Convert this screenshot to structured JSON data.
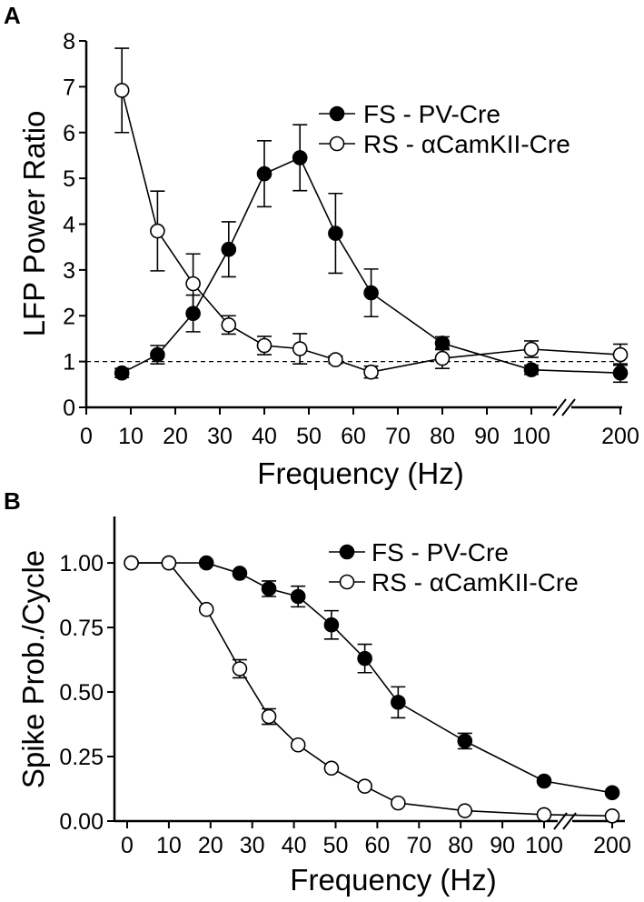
{
  "figure": {
    "panels": [
      {
        "letter": "A"
      },
      {
        "letter": "B"
      }
    ]
  },
  "chart_data": [
    {
      "type": "line",
      "panel": "A",
      "xlabel": "Frequency (Hz)",
      "ylabel": "LFP Power Ratio",
      "ylim": [
        0,
        8
      ],
      "x_tick_labels": [
        "0",
        "10",
        "20",
        "30",
        "40",
        "50",
        "60",
        "70",
        "80",
        "90",
        "100",
        "200"
      ],
      "y_tick_labels": [
        "0",
        "1",
        "2",
        "3",
        "4",
        "5",
        "6",
        "7",
        "8"
      ],
      "axis_break": "between 100 and 200 Hz",
      "reference_line": {
        "y": 1,
        "style": "dashed"
      },
      "legend_position": "top-right",
      "series": [
        {
          "name": "FS - PV-Cre",
          "marker": "filled-circle",
          "x": [
            8,
            16,
            24,
            32,
            40,
            48,
            56,
            64,
            80,
            100,
            200
          ],
          "values": [
            0.75,
            1.15,
            2.05,
            3.45,
            5.1,
            5.45,
            3.8,
            2.5,
            1.4,
            0.82,
            0.75
          ],
          "error": [
            0.1,
            0.2,
            0.4,
            0.6,
            0.72,
            0.72,
            0.87,
            0.52,
            0.14,
            0.1,
            0.2
          ]
        },
        {
          "name": "RS - αCamKII-Cre",
          "marker": "open-circle",
          "x": [
            8,
            16,
            24,
            32,
            40,
            48,
            56,
            64,
            80,
            100,
            200
          ],
          "values": [
            6.92,
            3.85,
            2.7,
            1.8,
            1.35,
            1.28,
            1.04,
            0.77,
            1.07,
            1.27,
            1.15
          ],
          "error": [
            0.92,
            0.87,
            0.65,
            0.2,
            0.2,
            0.33,
            0.08,
            0.13,
            0.22,
            0.18,
            0.23
          ]
        }
      ]
    },
    {
      "type": "line",
      "panel": "B",
      "xlabel": "Frequency (Hz)",
      "ylabel": "Spike Prob./Cycle",
      "ylim": [
        0,
        1.18
      ],
      "x_tick_labels": [
        "0",
        "10",
        "20",
        "30",
        "40",
        "50",
        "60",
        "70",
        "80",
        "90",
        "100",
        "200"
      ],
      "y_tick_labels": [
        "0.00",
        "0.25",
        "0.50",
        "0.75",
        "1.00"
      ],
      "axis_break": "between 100 and 200 Hz",
      "legend_position": "top-right",
      "series": [
        {
          "name": "FS - PV-Cre",
          "marker": "filled-circle",
          "x": [
            1,
            10,
            19,
            27,
            34,
            41,
            49,
            57,
            65,
            81,
            100,
            200
          ],
          "values": [
            1.0,
            1.0,
            1.0,
            0.96,
            0.9,
            0.87,
            0.76,
            0.63,
            0.46,
            0.31,
            0.155,
            0.11
          ],
          "error": [
            0,
            0,
            0,
            0,
            0.03,
            0.04,
            0.055,
            0.055,
            0.06,
            0.03,
            0,
            0
          ]
        },
        {
          "name": "RS - αCamKII-Cre",
          "marker": "open-circle",
          "x": [
            1,
            10,
            19,
            27,
            34,
            41,
            49,
            57,
            65,
            81,
            100,
            200
          ],
          "values": [
            1.0,
            1.0,
            0.82,
            0.59,
            0.405,
            0.295,
            0.205,
            0.135,
            0.07,
            0.04,
            0.025,
            0.02
          ],
          "error": [
            0,
            0,
            0,
            0.035,
            0.03,
            0,
            0,
            0,
            0,
            0,
            0,
            0
          ]
        }
      ]
    }
  ]
}
